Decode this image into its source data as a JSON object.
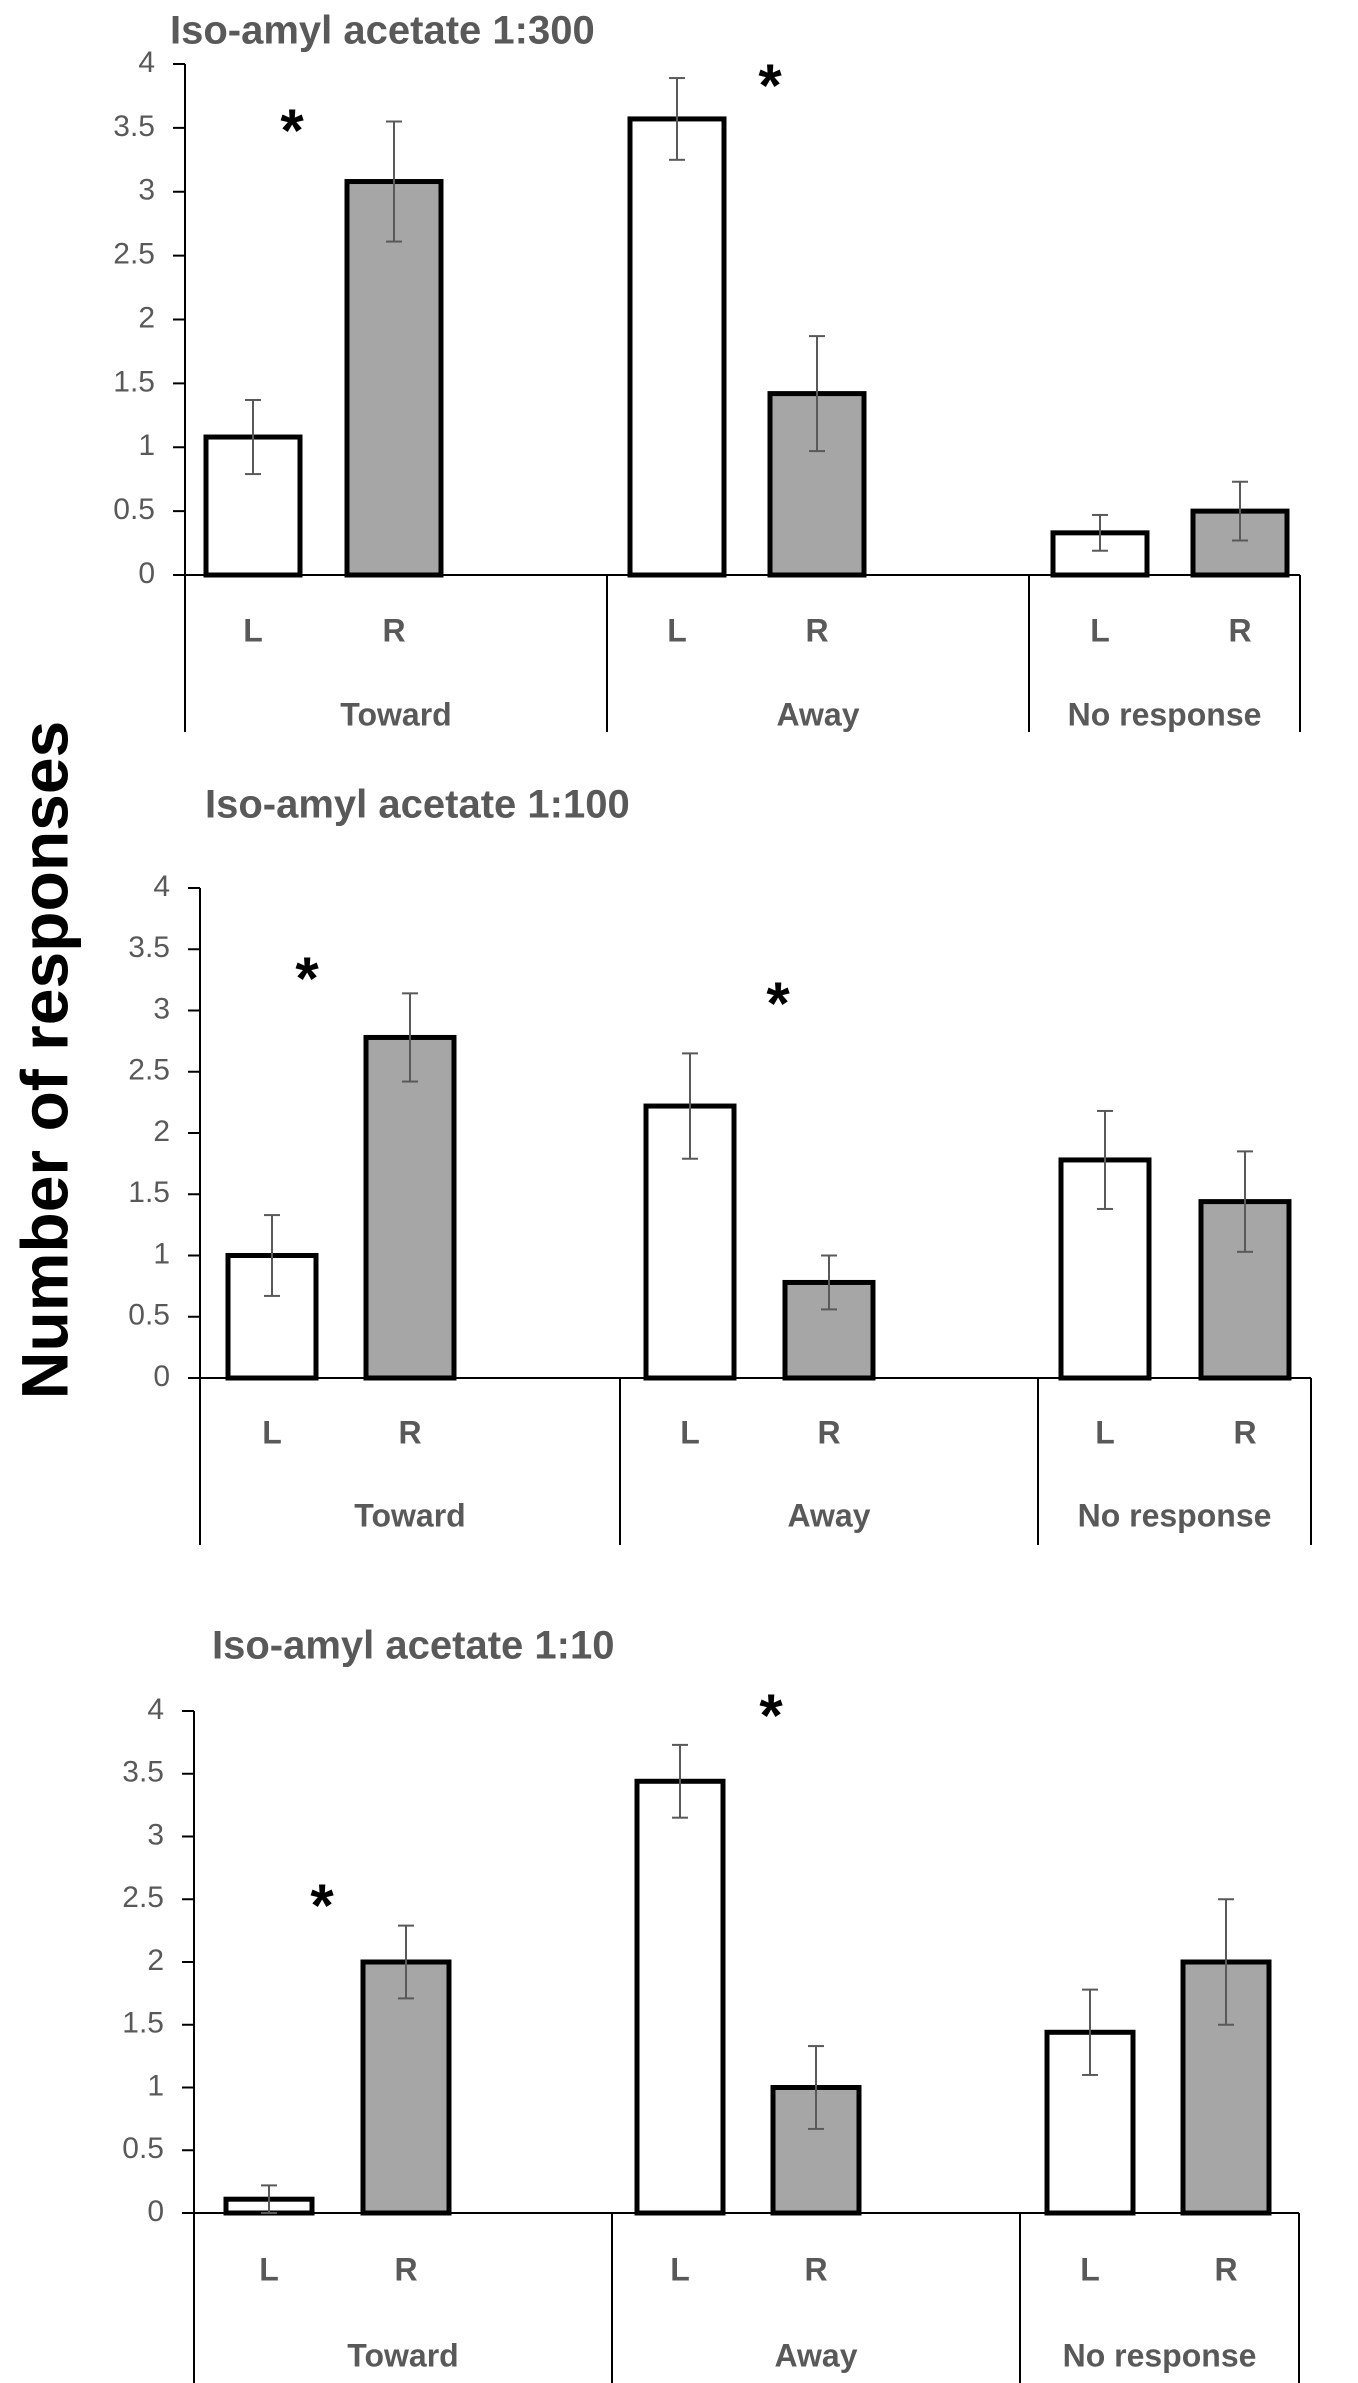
{
  "figure": {
    "ylabel": "Number of responses"
  },
  "colors": {
    "left_fill": "#ffffff",
    "right_fill": "#a6a6a6",
    "bar_stroke": "#000000",
    "axis": "#000000",
    "error_bar": "#595959",
    "text": "#595959"
  },
  "chart_data": [
    {
      "type": "bar",
      "title": "Iso-amyl acetate 1:300",
      "ylim": [
        0,
        4
      ],
      "yticks": [
        "0",
        "0.5",
        "1",
        "1.5",
        "2",
        "2.5",
        "3",
        "3.5",
        "4"
      ],
      "groups": [
        "Toward",
        "Away",
        "No response"
      ],
      "sub_categories": [
        "L",
        "R"
      ],
      "series": [
        {
          "name": "L",
          "values": [
            1.08,
            3.57,
            0.33
          ],
          "errors": [
            0.29,
            0.32,
            0.14
          ]
        },
        {
          "name": "R",
          "values": [
            3.08,
            1.42,
            0.5
          ],
          "errors": [
            0.47,
            0.45,
            0.23
          ]
        }
      ],
      "significance": [
        {
          "group": "Toward",
          "mark": "*"
        },
        {
          "group": "Away",
          "mark": "*"
        }
      ]
    },
    {
      "type": "bar",
      "title": "Iso-amyl acetate 1:100",
      "ylim": [
        0,
        4
      ],
      "yticks": [
        "0",
        "0.5",
        "1",
        "1.5",
        "2",
        "2.5",
        "3",
        "3.5",
        "4"
      ],
      "groups": [
        "Toward",
        "Away",
        "No response"
      ],
      "sub_categories": [
        "L",
        "R"
      ],
      "series": [
        {
          "name": "L",
          "values": [
            1.0,
            2.22,
            1.78
          ],
          "errors": [
            0.33,
            0.43,
            0.4
          ]
        },
        {
          "name": "R",
          "values": [
            2.78,
            0.78,
            1.44
          ],
          "errors": [
            0.36,
            0.22,
            0.41
          ]
        }
      ],
      "significance": [
        {
          "group": "Toward",
          "mark": "*"
        },
        {
          "group": "Away",
          "mark": "*"
        }
      ]
    },
    {
      "type": "bar",
      "title": "Iso-amyl acetate 1:10",
      "ylim": [
        0,
        4
      ],
      "yticks": [
        "0",
        "0.5",
        "1",
        "1.5",
        "2",
        "2.5",
        "3",
        "3.5",
        "4"
      ],
      "groups": [
        "Toward",
        "Away",
        "No response"
      ],
      "sub_categories": [
        "L",
        "R"
      ],
      "series": [
        {
          "name": "L",
          "values": [
            0.11,
            3.44,
            1.44
          ],
          "errors": [
            0.11,
            0.29,
            0.34
          ]
        },
        {
          "name": "R",
          "values": [
            2.0,
            1.0,
            2.0
          ],
          "errors": [
            0.29,
            0.33,
            0.5
          ]
        }
      ],
      "significance": [
        {
          "group": "Toward",
          "mark": "*"
        },
        {
          "group": "Away",
          "mark": "*"
        }
      ]
    }
  ]
}
